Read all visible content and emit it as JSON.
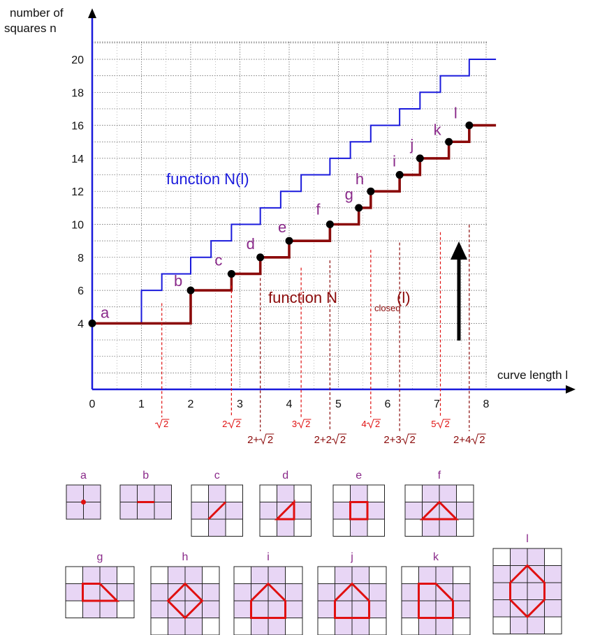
{
  "chart_data": {
    "type": "line",
    "ylabel_lines": [
      "number of",
      "squares n"
    ],
    "xlabel": "curve length l",
    "xlim": [
      0,
      8.4
    ],
    "ylim": [
      0,
      21.5
    ],
    "x_ticks": [
      "0",
      "1",
      "2",
      "3",
      "4",
      "5",
      "6",
      "7",
      "8"
    ],
    "y_ticks": [
      "4",
      "6",
      "8",
      "10",
      "12",
      "14",
      "16",
      "18",
      "20"
    ],
    "colors": {
      "blue": "#1a1adc",
      "maroon": "#8b0a0a",
      "red": "#e01010",
      "purple": "#8a2a8a",
      "tile": "#e8d6f5"
    },
    "series": [
      {
        "name": "function N(l)",
        "label_main": "function N(l)",
        "color": "#1a1adc",
        "steps": [
          [
            0,
            4
          ],
          [
            1,
            6
          ],
          [
            1.414,
            7
          ],
          [
            2,
            8
          ],
          [
            2.414,
            9
          ],
          [
            2.828,
            10
          ],
          [
            3.414,
            11
          ],
          [
            3.828,
            12
          ],
          [
            4.243,
            13
          ],
          [
            4.828,
            14
          ],
          [
            5.243,
            15
          ],
          [
            5.657,
            16
          ],
          [
            6.243,
            17
          ],
          [
            6.657,
            18
          ],
          [
            7.071,
            19
          ],
          [
            7.657,
            20
          ]
        ],
        "x_end": 8.2
      },
      {
        "name": "function N_closed(l)",
        "label_main": "function N",
        "label_sub": "closed",
        "label_tail": "(l)",
        "color": "#8b0a0a",
        "steps": [
          [
            0,
            4
          ],
          [
            2,
            6
          ],
          [
            2.828,
            7
          ],
          [
            3.414,
            8
          ],
          [
            4,
            9
          ],
          [
            4.828,
            10
          ],
          [
            5.414,
            11
          ],
          [
            5.657,
            12
          ],
          [
            6.243,
            13
          ],
          [
            6.657,
            14
          ],
          [
            7.243,
            15
          ],
          [
            7.657,
            16
          ]
        ],
        "x_end": 8.2
      }
    ],
    "points": [
      {
        "label": "a",
        "x": 0,
        "y": 4
      },
      {
        "label": "b",
        "x": 2,
        "y": 6
      },
      {
        "label": "c",
        "x": 2.828,
        "y": 7
      },
      {
        "label": "d",
        "x": 3.414,
        "y": 8
      },
      {
        "label": "e",
        "x": 4,
        "y": 9
      },
      {
        "label": "f",
        "x": 4.828,
        "y": 10
      },
      {
        "label": "g",
        "x": 5.414,
        "y": 11
      },
      {
        "label": "h",
        "x": 5.657,
        "y": 12
      },
      {
        "label": "i",
        "x": 6.243,
        "y": 13
      },
      {
        "label": "j",
        "x": 6.657,
        "y": 14
      },
      {
        "label": "k",
        "x": 7.243,
        "y": 15
      },
      {
        "label": "l",
        "x": 7.657,
        "y": 16
      }
    ],
    "annotations": [
      {
        "x": 1.414,
        "color": "red",
        "lead": "",
        "rad": "2"
      },
      {
        "x": 2.828,
        "color": "red",
        "lead": "2",
        "rad": "2"
      },
      {
        "x": 3.414,
        "color": "maroon",
        "lead": "2+",
        "rad": "2"
      },
      {
        "x": 4.243,
        "color": "red",
        "lead": "3",
        "rad": "2"
      },
      {
        "x": 4.828,
        "color": "maroon",
        "lead": "2+2",
        "rad": "2"
      },
      {
        "x": 5.657,
        "color": "red",
        "lead": "4",
        "rad": "2"
      },
      {
        "x": 6.243,
        "color": "maroon",
        "lead": "2+3",
        "rad": "2"
      },
      {
        "x": 7.071,
        "color": "red",
        "lead": "5",
        "rad": "2"
      },
      {
        "x": 7.657,
        "color": "maroon",
        "lead": "2+4",
        "rad": "2"
      }
    ],
    "shapes": [
      {
        "label": "a",
        "size": 2,
        "corners": false,
        "poly": [
          [
            1,
            1
          ]
        ]
      },
      {
        "label": "b",
        "size": 2,
        "cols": 3,
        "corners": false,
        "poly": [
          [
            1,
            1
          ],
          [
            2,
            1
          ]
        ]
      },
      {
        "label": "c",
        "size": 3,
        "corners": true,
        "poly": [
          [
            1,
            2
          ],
          [
            2,
            1
          ]
        ]
      },
      {
        "label": "d",
        "size": 3,
        "corners": true,
        "poly": [
          [
            1,
            2
          ],
          [
            2,
            1
          ],
          [
            2,
            2
          ]
        ]
      },
      {
        "label": "e",
        "size": 3,
        "corners": true,
        "poly": [
          [
            1,
            1
          ],
          [
            2,
            1
          ],
          [
            2,
            2
          ],
          [
            1,
            2
          ]
        ]
      },
      {
        "label": "f",
        "size": 3,
        "cols": 4,
        "corners": true,
        "poly": [
          [
            1,
            2
          ],
          [
            2,
            1
          ],
          [
            3,
            2
          ]
        ]
      },
      {
        "label": "g",
        "size": 3,
        "cols": 4,
        "corners": true,
        "poly": [
          [
            1,
            1
          ],
          [
            2,
            1
          ],
          [
            3,
            2
          ],
          [
            1,
            2
          ]
        ]
      },
      {
        "label": "h",
        "size": 4,
        "corners": true,
        "poly": [
          [
            2,
            1
          ],
          [
            3,
            2
          ],
          [
            2,
            3
          ],
          [
            1,
            2
          ]
        ]
      },
      {
        "label": "i",
        "size": 4,
        "corners": true,
        "poly": [
          [
            2,
            1
          ],
          [
            3,
            2
          ],
          [
            3,
            3
          ],
          [
            1,
            3
          ],
          [
            1,
            2
          ]
        ]
      },
      {
        "label": "j",
        "size": 4,
        "corners": true,
        "poly": [
          [
            2,
            1
          ],
          [
            3,
            2
          ],
          [
            3,
            3
          ],
          [
            1,
            3
          ],
          [
            1,
            2
          ]
        ]
      },
      {
        "label": "k",
        "size": 4,
        "corners": true,
        "poly": [
          [
            1,
            1
          ],
          [
            2,
            1
          ],
          [
            3,
            2
          ],
          [
            3,
            3
          ],
          [
            1,
            3
          ]
        ]
      },
      {
        "label": "l",
        "size": 4,
        "rows": 5,
        "corners": true,
        "poly": [
          [
            1,
            2
          ],
          [
            2,
            1
          ],
          [
            3,
            2
          ],
          [
            3,
            3
          ],
          [
            2,
            4
          ],
          [
            1,
            3
          ]
        ]
      }
    ]
  }
}
